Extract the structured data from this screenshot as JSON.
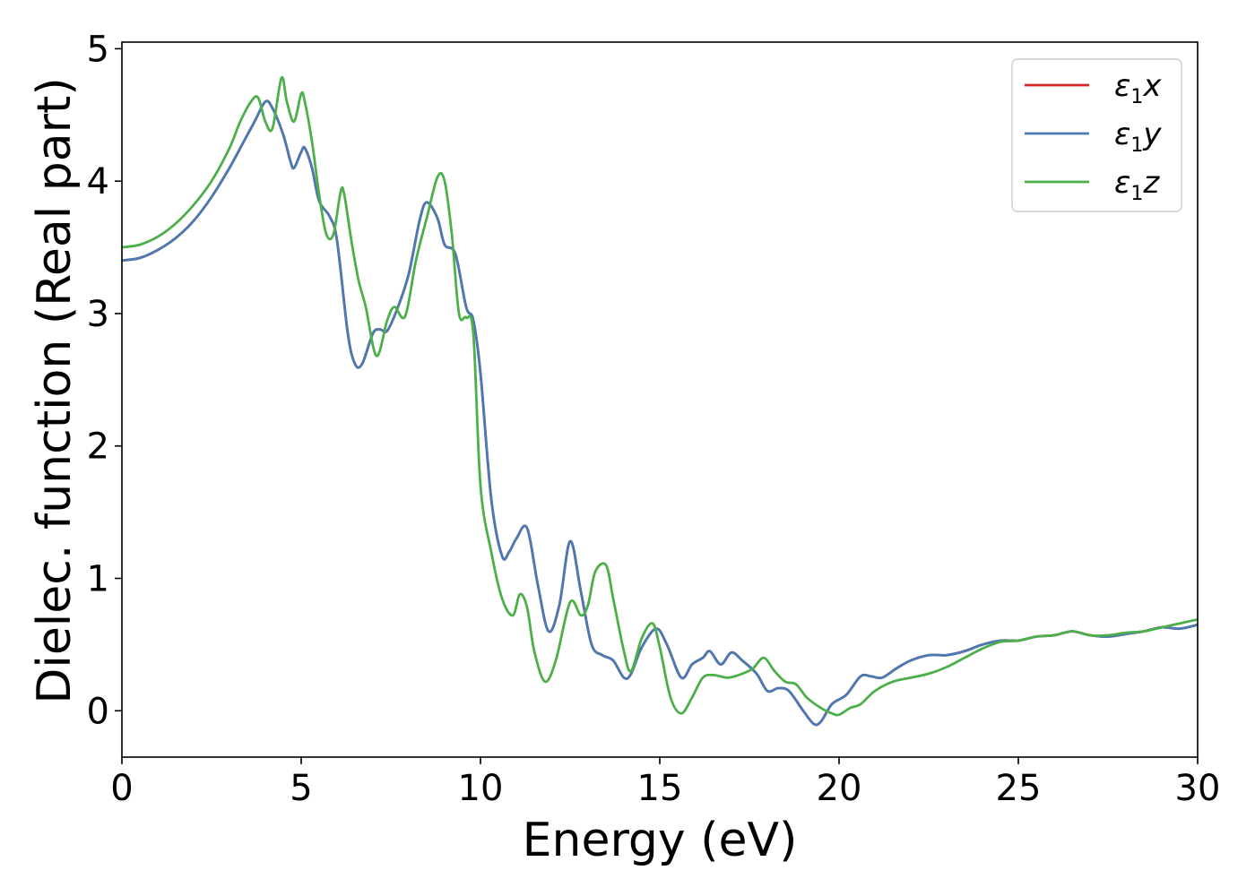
{
  "chart_data": {
    "type": "line",
    "xlabel": "Energy (eV)",
    "ylabel": "Dielec. function (Real part)",
    "xlim": [
      0,
      30
    ],
    "ylim": [
      -0.35,
      5.05
    ],
    "xticks": [
      0,
      5,
      10,
      15,
      20,
      25,
      30
    ],
    "yticks": [
      0,
      1,
      2,
      3,
      4,
      5
    ],
    "grid": false,
    "legend_position": "top-right",
    "colors": {
      "x": "#d62728",
      "y": "#4a7ab4",
      "z": "#4daf4a"
    },
    "series": [
      {
        "name": "ε₁x",
        "legend_symbol": "ε",
        "legend_sub": "1",
        "legend_axis": "x",
        "color": "#d62728",
        "x": [
          0,
          0.5,
          1,
          1.5,
          2,
          2.5,
          3,
          3.4,
          3.7,
          4.0,
          4.2,
          4.5,
          4.7,
          4.8,
          5.0,
          5.1,
          5.3,
          5.5,
          5.8,
          6.0,
          6.3,
          6.5,
          6.7,
          7.0,
          7.2,
          7.4,
          7.7,
          8.0,
          8.3,
          8.5,
          8.8,
          9.0,
          9.3,
          9.6,
          9.8,
          10.0,
          10.3,
          10.6,
          10.8,
          11.0,
          11.3,
          11.6,
          11.9,
          12.2,
          12.5,
          12.8,
          13.1,
          13.4,
          13.7,
          14.0,
          14.2,
          14.5,
          14.9,
          15.2,
          15.6,
          15.9,
          16.2,
          16.4,
          16.7,
          17.0,
          17.3,
          17.7,
          18.0,
          18.3,
          18.6,
          19.0,
          19.3,
          19.5,
          19.8,
          20.2,
          20.6,
          20.9,
          21.2,
          21.6,
          22.0,
          22.5,
          23.0,
          23.5,
          24.0,
          24.5,
          25.0,
          25.5,
          26.0,
          26.5,
          27.0,
          27.5,
          28.0,
          28.5,
          29.0,
          29.5,
          30.0
        ],
        "y": [
          3.4,
          3.42,
          3.48,
          3.57,
          3.7,
          3.88,
          4.1,
          4.3,
          4.45,
          4.6,
          4.55,
          4.35,
          4.15,
          4.1,
          4.22,
          4.25,
          4.1,
          3.85,
          3.73,
          3.55,
          2.85,
          2.62,
          2.62,
          2.85,
          2.88,
          2.87,
          3.05,
          3.3,
          3.7,
          3.84,
          3.72,
          3.52,
          3.45,
          3.05,
          2.95,
          2.55,
          1.6,
          1.17,
          1.2,
          1.3,
          1.38,
          0.95,
          0.6,
          0.8,
          1.28,
          0.9,
          0.5,
          0.42,
          0.38,
          0.25,
          0.28,
          0.48,
          0.62,
          0.5,
          0.25,
          0.35,
          0.4,
          0.45,
          0.35,
          0.44,
          0.38,
          0.28,
          0.15,
          0.17,
          0.15,
          0.0,
          -0.1,
          -0.08,
          0.05,
          0.12,
          0.26,
          0.26,
          0.25,
          0.32,
          0.38,
          0.42,
          0.42,
          0.45,
          0.5,
          0.53,
          0.53,
          0.56,
          0.57,
          0.6,
          0.57,
          0.56,
          0.58,
          0.6,
          0.63,
          0.62,
          0.65
        ]
      },
      {
        "name": "ε₁y",
        "legend_symbol": "ε",
        "legend_sub": "1",
        "legend_axis": "y",
        "color": "#4a7ab4",
        "x": [
          0,
          0.5,
          1,
          1.5,
          2,
          2.5,
          3,
          3.4,
          3.7,
          4.0,
          4.2,
          4.5,
          4.7,
          4.8,
          5.0,
          5.1,
          5.3,
          5.5,
          5.8,
          6.0,
          6.3,
          6.5,
          6.7,
          7.0,
          7.2,
          7.4,
          7.7,
          8.0,
          8.3,
          8.5,
          8.8,
          9.0,
          9.3,
          9.6,
          9.8,
          10.0,
          10.3,
          10.6,
          10.8,
          11.0,
          11.3,
          11.6,
          11.9,
          12.2,
          12.5,
          12.8,
          13.1,
          13.4,
          13.7,
          14.0,
          14.2,
          14.5,
          14.9,
          15.2,
          15.6,
          15.9,
          16.2,
          16.4,
          16.7,
          17.0,
          17.3,
          17.7,
          18.0,
          18.3,
          18.6,
          19.0,
          19.3,
          19.5,
          19.8,
          20.2,
          20.6,
          20.9,
          21.2,
          21.6,
          22.0,
          22.5,
          23.0,
          23.5,
          24.0,
          24.5,
          25.0,
          25.5,
          26.0,
          26.5,
          27.0,
          27.5,
          28.0,
          28.5,
          29.0,
          29.5,
          30.0
        ],
        "y": [
          3.4,
          3.42,
          3.48,
          3.57,
          3.7,
          3.88,
          4.1,
          4.3,
          4.45,
          4.6,
          4.55,
          4.35,
          4.15,
          4.1,
          4.22,
          4.25,
          4.1,
          3.85,
          3.73,
          3.55,
          2.85,
          2.62,
          2.62,
          2.85,
          2.88,
          2.87,
          3.05,
          3.3,
          3.7,
          3.84,
          3.72,
          3.52,
          3.45,
          3.05,
          2.95,
          2.55,
          1.6,
          1.17,
          1.2,
          1.3,
          1.38,
          0.95,
          0.6,
          0.8,
          1.28,
          0.9,
          0.5,
          0.42,
          0.38,
          0.25,
          0.28,
          0.48,
          0.62,
          0.5,
          0.25,
          0.35,
          0.4,
          0.45,
          0.35,
          0.44,
          0.38,
          0.28,
          0.15,
          0.17,
          0.15,
          0.0,
          -0.1,
          -0.08,
          0.05,
          0.12,
          0.26,
          0.26,
          0.25,
          0.32,
          0.38,
          0.42,
          0.42,
          0.45,
          0.5,
          0.53,
          0.53,
          0.56,
          0.57,
          0.6,
          0.57,
          0.56,
          0.58,
          0.6,
          0.63,
          0.62,
          0.65
        ]
      },
      {
        "name": "ε₁z",
        "legend_symbol": "ε",
        "legend_sub": "1",
        "legend_axis": "z",
        "color": "#4daf4a",
        "x": [
          0,
          0.5,
          1,
          1.5,
          2,
          2.5,
          3,
          3.3,
          3.6,
          3.8,
          4.0,
          4.2,
          4.45,
          4.6,
          4.8,
          5.0,
          5.1,
          5.3,
          5.5,
          5.7,
          5.9,
          6.1,
          6.2,
          6.4,
          6.6,
          6.8,
          7.1,
          7.4,
          7.6,
          7.9,
          8.2,
          8.5,
          8.8,
          9.0,
          9.2,
          9.4,
          9.6,
          9.8,
          10.0,
          10.3,
          10.6,
          10.9,
          11.1,
          11.3,
          11.5,
          11.8,
          12.1,
          12.5,
          12.8,
          13.0,
          13.2,
          13.5,
          13.7,
          14.0,
          14.2,
          14.5,
          14.8,
          15.0,
          15.3,
          15.6,
          15.9,
          16.2,
          16.5,
          16.9,
          17.3,
          17.6,
          17.9,
          18.2,
          18.5,
          18.8,
          19.1,
          19.5,
          19.8,
          20.0,
          20.3,
          20.6,
          21.0,
          21.5,
          22.0,
          22.5,
          23.0,
          23.5,
          24.0,
          24.5,
          25.0,
          25.5,
          26.0,
          26.5,
          27.0,
          27.5,
          28.0,
          28.5,
          29.0,
          29.5,
          30.0
        ],
        "y": [
          3.5,
          3.52,
          3.58,
          3.68,
          3.82,
          4.0,
          4.25,
          4.45,
          4.6,
          4.63,
          4.45,
          4.4,
          4.78,
          4.6,
          4.45,
          4.66,
          4.6,
          4.3,
          3.9,
          3.6,
          3.6,
          3.92,
          3.9,
          3.55,
          3.25,
          3.05,
          2.68,
          2.95,
          3.05,
          2.98,
          3.4,
          3.72,
          4.03,
          4.0,
          3.6,
          3.0,
          2.97,
          2.85,
          1.7,
          1.2,
          0.85,
          0.72,
          0.88,
          0.78,
          0.45,
          0.22,
          0.38,
          0.82,
          0.72,
          0.8,
          1.05,
          1.1,
          0.85,
          0.45,
          0.3,
          0.55,
          0.66,
          0.48,
          0.1,
          -0.02,
          0.1,
          0.25,
          0.27,
          0.25,
          0.28,
          0.32,
          0.4,
          0.3,
          0.22,
          0.2,
          0.1,
          0.02,
          -0.02,
          -0.03,
          0.02,
          0.05,
          0.15,
          0.22,
          0.25,
          0.28,
          0.33,
          0.4,
          0.47,
          0.52,
          0.53,
          0.56,
          0.57,
          0.6,
          0.57,
          0.57,
          0.59,
          0.6,
          0.63,
          0.66,
          0.69
        ]
      }
    ]
  }
}
